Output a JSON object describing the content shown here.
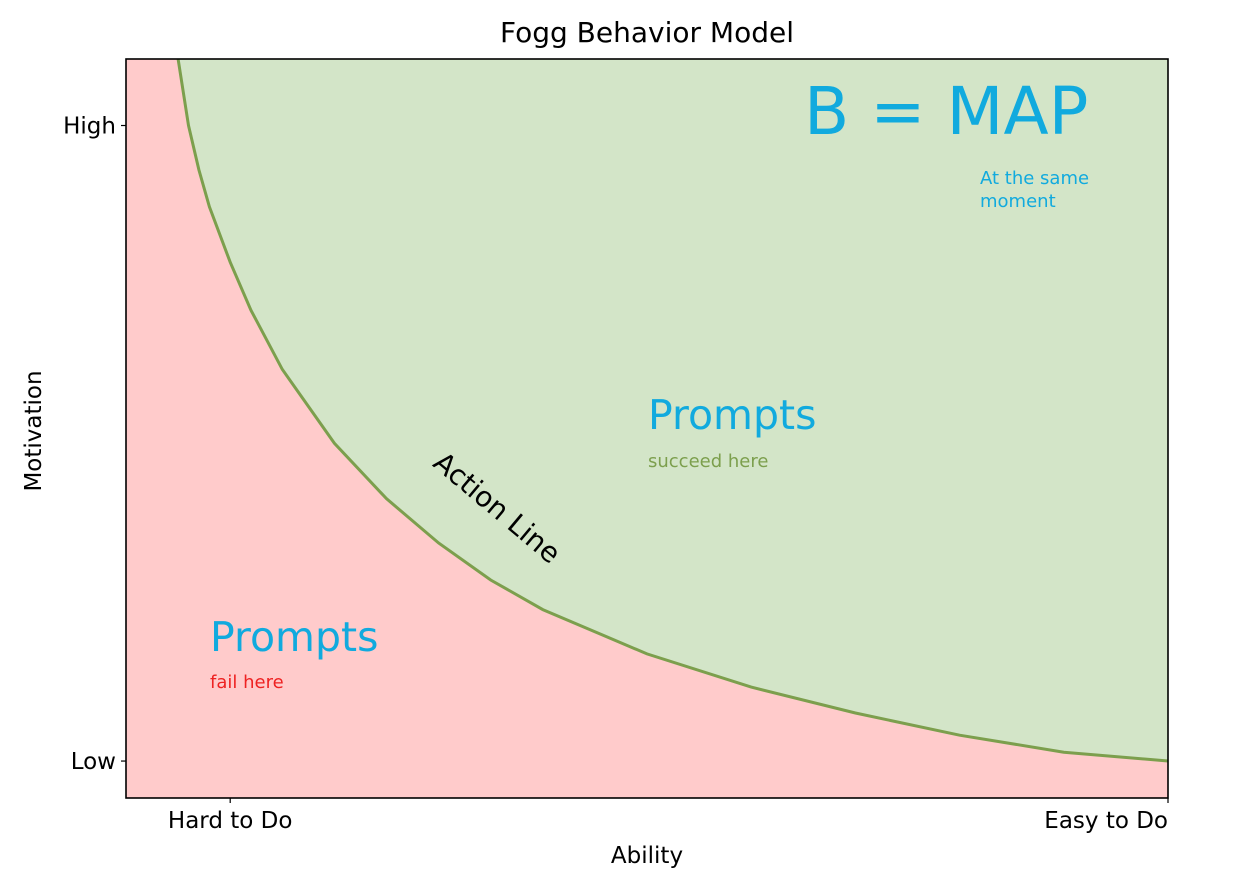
{
  "chart_data": {
    "type": "area",
    "title": "Fogg Behavior Model",
    "xlabel": "Ability",
    "ylabel": "Motivation",
    "xlim": [
      0,
      10
    ],
    "ylim": [
      0,
      10
    ],
    "x_ticks": [
      {
        "value": 1,
        "label": "Hard to Do"
      },
      {
        "value": 10,
        "label": "Easy to Do"
      }
    ],
    "y_ticks": [
      {
        "value": 0.5,
        "label": "Low"
      },
      {
        "value": 9.1,
        "label": "High"
      }
    ],
    "action_line": {
      "label": "Action Line",
      "x": [
        0.5,
        0.6,
        0.7,
        0.8,
        1.0,
        1.2,
        1.5,
        2.0,
        2.5,
        3.0,
        3.5,
        4.0,
        5.0,
        6.0,
        7.0,
        8.0,
        9.0,
        10.0
      ],
      "y": [
        10.0,
        9.1,
        8.5,
        8.0,
        7.25,
        6.6,
        5.8,
        4.8,
        4.05,
        3.45,
        2.95,
        2.55,
        1.95,
        1.5,
        1.15,
        0.85,
        0.62,
        0.5
      ]
    },
    "regions": {
      "above_color": "#d3e5c8",
      "below_color": "#ffcbcb",
      "line_color": "#7c9f4d"
    },
    "annotations": {
      "equation": {
        "text": "B = MAP",
        "color": "#11aade"
      },
      "equation_note_1": {
        "text": "At the same",
        "color": "#11aade"
      },
      "equation_note_2": {
        "text": "moment",
        "color": "#11aade"
      },
      "success_title": {
        "text": "Prompts",
        "color": "#11aade"
      },
      "success_sub": {
        "text": "succeed here",
        "color": "#7c9f4d"
      },
      "fail_title": {
        "text": "Prompts",
        "color": "#11aade"
      },
      "fail_sub": {
        "text": "fail here",
        "color": "#ee2222"
      }
    }
  }
}
